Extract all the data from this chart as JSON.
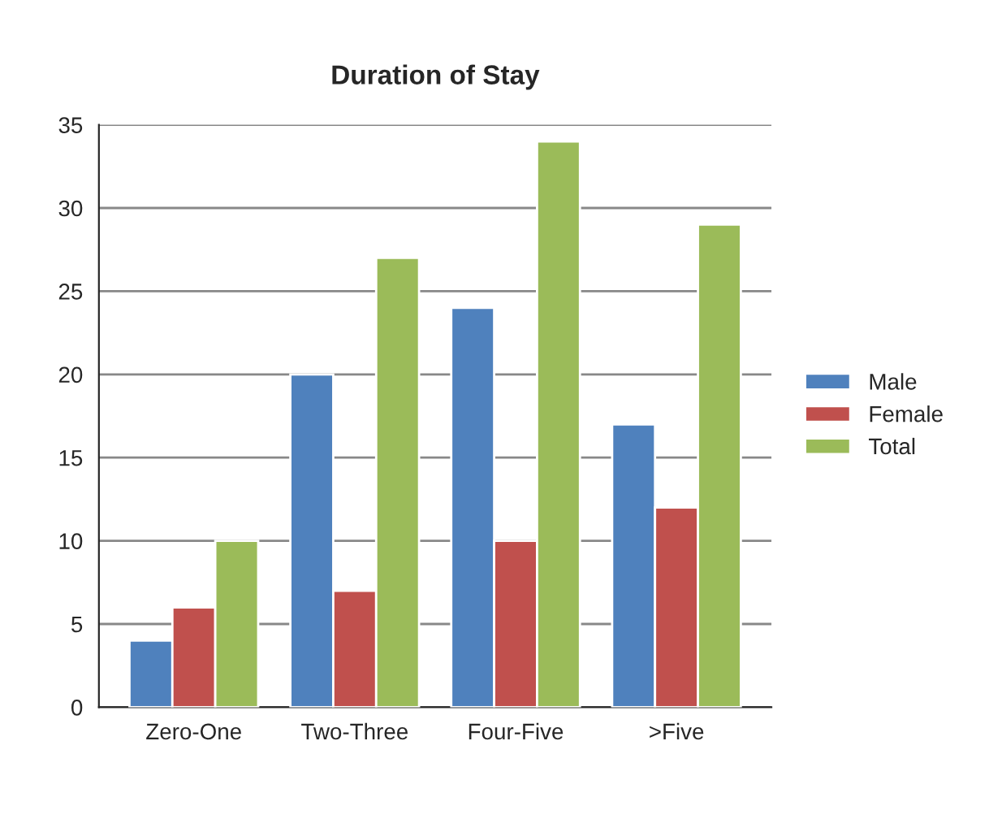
{
  "chart_data": {
    "type": "bar",
    "title": "Duration of Stay",
    "categories": [
      "Zero-One",
      "Two-Three",
      "Four-Five",
      ">Five"
    ],
    "series": [
      {
        "name": "Male",
        "color": "#4f81bd",
        "values": [
          4,
          20,
          24,
          17
        ]
      },
      {
        "name": "Female",
        "color": "#c0504d",
        "values": [
          6,
          7,
          10,
          12
        ]
      },
      {
        "name": "Total",
        "color": "#9bbb59",
        "values": [
          10,
          27,
          34,
          29
        ]
      }
    ],
    "ylim": [
      0,
      35
    ],
    "yticks": [
      0,
      5,
      10,
      15,
      20,
      25,
      30,
      35
    ],
    "grid": "y",
    "legend": "right"
  }
}
